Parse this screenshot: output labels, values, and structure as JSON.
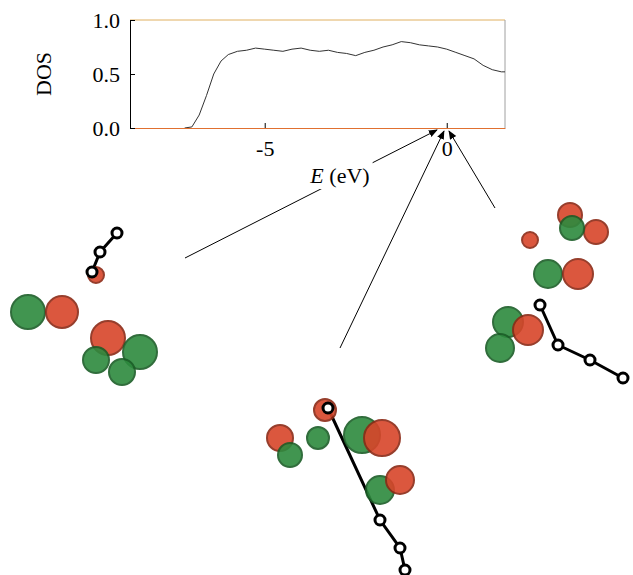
{
  "chart_data": {
    "type": "line",
    "x_label": "E (eV)",
    "y_label": "DOS",
    "x": [
      -7.2,
      -7.0,
      -6.8,
      -6.6,
      -6.4,
      -6.2,
      -6.0,
      -5.75,
      -5.5,
      -5.25,
      -5.0,
      -4.75,
      -4.5,
      -4.25,
      -4.0,
      -3.75,
      -3.5,
      -3.25,
      -3.0,
      -2.75,
      -2.5,
      -2.25,
      -2.0,
      -1.75,
      -1.5,
      -1.25,
      -1.0,
      -0.75,
      -0.5,
      -0.25,
      0.0,
      0.25,
      0.5,
      0.75,
      1.0,
      1.25,
      1.5,
      1.6
    ],
    "series": [
      {
        "color": "#333333",
        "values": [
          0.0,
          0.01,
          0.12,
          0.3,
          0.5,
          0.62,
          0.68,
          0.71,
          0.72,
          0.74,
          0.73,
          0.72,
          0.71,
          0.73,
          0.74,
          0.72,
          0.71,
          0.72,
          0.7,
          0.69,
          0.67,
          0.7,
          0.72,
          0.75,
          0.77,
          0.8,
          0.79,
          0.77,
          0.76,
          0.75,
          0.73,
          0.7,
          0.67,
          0.64,
          0.58,
          0.54,
          0.52,
          0.52
        ]
      }
    ],
    "xlim": [
      -8.7,
      1.6
    ],
    "xticks": [
      -5,
      0
    ],
    "ylim": [
      0,
      1
    ],
    "yticks": [
      {
        "value": 0,
        "label": "0.0"
      },
      {
        "value": 0.5,
        "label": "0.5"
      },
      {
        "value": 1,
        "label": "1.0"
      }
    ],
    "grid": false
  }
}
